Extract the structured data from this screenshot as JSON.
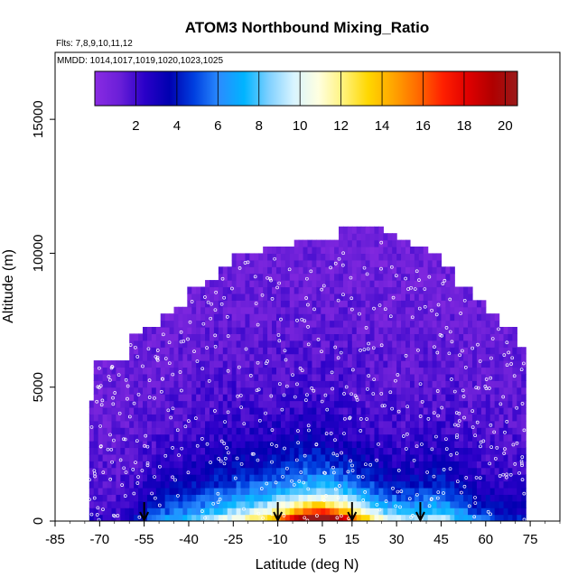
{
  "chart_data": {
    "type": "heatmap",
    "title": "ATOM3 Northbound Mixing_Ratio",
    "subtitle_flights": "Flts: 7,8,9,10,11,12",
    "subtitle_dates": "MMDD: 1014,1017,1019,1020,1023,1025",
    "xlabel": "Latitude (deg N)",
    "ylabel": "Altitude (m)",
    "xlim": [
      -85,
      85
    ],
    "ylim": [
      0,
      17500
    ],
    "x_ticks": [
      "-85",
      "-70",
      "-55",
      "-40",
      "-25",
      "-10",
      "5",
      "15",
      "30",
      "45",
      "60",
      "75"
    ],
    "x_tick_values": [
      -85,
      -70,
      -55,
      -40,
      -25,
      -10,
      5,
      15,
      30,
      45,
      60,
      75
    ],
    "y_ticks": [
      "0",
      "5000",
      "10000",
      "15000"
    ],
    "y_tick_values": [
      0,
      5000,
      10000,
      15000
    ],
    "colorbar": {
      "min": 0,
      "max": 20.6,
      "ticks": [
        "2",
        "4",
        "6",
        "8",
        "10",
        "12",
        "14",
        "16",
        "18",
        "20"
      ],
      "tick_values": [
        2,
        4,
        6,
        8,
        10,
        12,
        14,
        16,
        18,
        20
      ],
      "colors": [
        "#8a2be2",
        "#6a1fd8",
        "#2a00c8",
        "#0000b0",
        "#0040e0",
        "#2a8cff",
        "#00b4ff",
        "#7fd0ff",
        "#d8f4ff",
        "#ffffe0",
        "#fff27a",
        "#ffd700",
        "#ffa500",
        "#ff6a00",
        "#ff2000",
        "#e00000",
        "#b00000",
        "#9a1a1a"
      ]
    },
    "profile_envelope": {
      "latitudes": [
        -74,
        -72,
        -65,
        -60,
        -55,
        -50,
        -45,
        -40,
        -35,
        -30,
        -25,
        -20,
        -15,
        -10,
        -5,
        0,
        5,
        10,
        15,
        20,
        25,
        30,
        35,
        40,
        45,
        50,
        55,
        60,
        65,
        70,
        73
      ],
      "max_altitude": [
        4500,
        6000,
        6000,
        6800,
        7200,
        7700,
        8000,
        8600,
        9000,
        9500,
        10000,
        10000,
        10100,
        10200,
        10300,
        10300,
        10500,
        10900,
        10900,
        10900,
        10600,
        10500,
        10200,
        10000,
        9500,
        8600,
        8100,
        7600,
        7100,
        6500,
        6000
      ]
    },
    "flight_markers_latitude": [
      -55,
      -10,
      15,
      38
    ]
  }
}
